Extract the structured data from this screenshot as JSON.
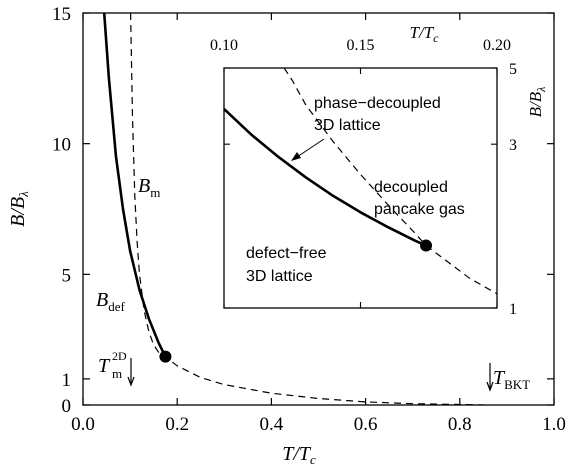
{
  "chart_data": [
    {
      "type": "line",
      "xlabel": "T/T",
      "xlabel_sub": "c",
      "ylabel": "B/B",
      "ylabel_sub": "λ",
      "xlim": [
        0,
        1.0
      ],
      "ylim": [
        0,
        15
      ],
      "xticks": [
        0.0,
        0.2,
        0.4,
        0.6,
        0.8,
        1.0
      ],
      "xtick_labels": [
        "0.0",
        "0.2",
        "0.4",
        "0.6",
        "0.8",
        "1.0"
      ],
      "yticks": [
        0,
        1,
        5,
        10,
        15
      ],
      "ytick_labels": [
        "0",
        "1",
        "5",
        "10",
        "15"
      ],
      "series": [
        {
          "name": "B_def",
          "label_main": "B",
          "label_sub": "def",
          "style": "solid",
          "x": [
            0.045,
            0.055,
            0.07,
            0.085,
            0.1,
            0.12,
            0.14,
            0.16,
            0.175
          ],
          "y": [
            15.0,
            12.5,
            9.5,
            7.5,
            5.9,
            4.4,
            3.3,
            2.4,
            1.85
          ]
        },
        {
          "name": "B_m",
          "label_main": "B",
          "label_sub": "m",
          "style": "dashed",
          "x": [
            0.101,
            0.105,
            0.11,
            0.115,
            0.12,
            0.13,
            0.14,
            0.15,
            0.165,
            0.175,
            0.2,
            0.25,
            0.3,
            0.4,
            0.5,
            0.6,
            0.7,
            0.8,
            0.86
          ],
          "y": [
            15.0,
            11.0,
            8.0,
            6.2,
            5.0,
            3.6,
            2.8,
            2.3,
            1.9,
            1.85,
            1.5,
            1.05,
            0.78,
            0.45,
            0.25,
            0.12,
            0.05,
            0.02,
            0.0
          ]
        }
      ],
      "points": [
        {
          "name": "triple-point",
          "x": 0.175,
          "y": 1.85
        }
      ],
      "annotations": [
        {
          "text": "T",
          "sub": "m",
          "sup": "2D",
          "arrow_x": 0.1
        },
        {
          "text": "T",
          "sub": "BKT",
          "arrow_x": 0.865
        }
      ]
    },
    {
      "type": "line",
      "xlabel": "T/T",
      "xlabel_sub": "c",
      "ylabel": "B/B",
      "ylabel_sub": "λ",
      "xlim": [
        0.1,
        0.2
      ],
      "ylim": [
        1,
        5
      ],
      "yscale": "log",
      "xticks": [
        0.1,
        0.15,
        0.2
      ],
      "xtick_labels": [
        "0.10",
        "0.15",
        "0.20"
      ],
      "yticks": [
        1,
        3,
        5
      ],
      "ytick_labels": [
        "1",
        "3",
        "5"
      ],
      "series": [
        {
          "name": "B_def",
          "style": "solid",
          "x": [
            0.1,
            0.11,
            0.12,
            0.13,
            0.14,
            0.15,
            0.16,
            0.17,
            0.174
          ],
          "y": [
            3.8,
            3.2,
            2.75,
            2.4,
            2.12,
            1.9,
            1.72,
            1.57,
            1.52
          ]
        },
        {
          "name": "B_m",
          "style": "dashed",
          "x": [
            0.122,
            0.125,
            0.13,
            0.14,
            0.15,
            0.16,
            0.17,
            0.174,
            0.18,
            0.19,
            0.2
          ],
          "y": [
            5.0,
            4.6,
            3.9,
            3.05,
            2.45,
            2.0,
            1.65,
            1.52,
            1.4,
            1.22,
            1.1
          ]
        }
      ],
      "points": [
        {
          "name": "triple-point",
          "x": 0.174,
          "y": 1.52
        }
      ],
      "region_labels": [
        {
          "lines": [
            "phase−decoupled",
            "3D lattice"
          ]
        },
        {
          "lines": [
            "decoupled",
            "pancake gas"
          ]
        },
        {
          "lines": [
            "defect−free",
            "3D lattice"
          ]
        }
      ]
    }
  ]
}
